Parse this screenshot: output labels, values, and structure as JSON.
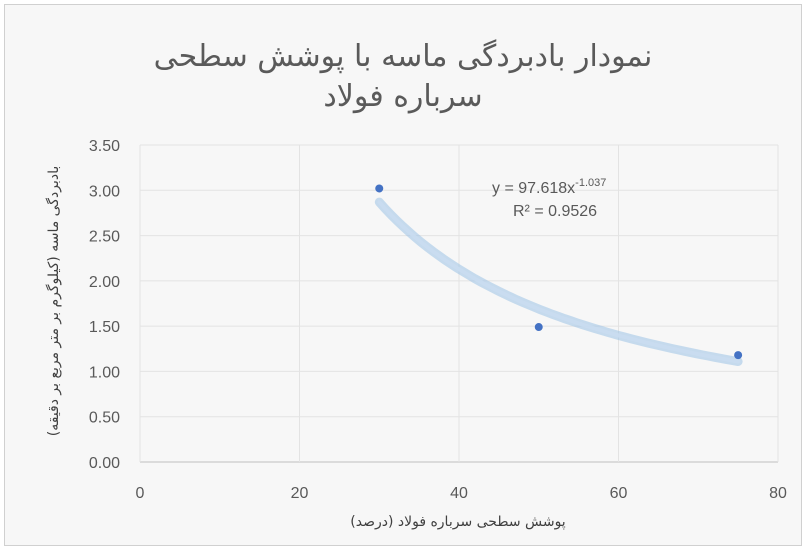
{
  "chart_data": {
    "type": "scatter",
    "title_lines": [
      "نمودار بادبردگی ماسه با پوشش سطحی",
      "سرباره فولاد"
    ],
    "xlabel": "پوشش سطحی سرباره فولاد (درصد)",
    "ylabel": "بادبردگی ماسه (کیلوگرم بر متر مربع بر دقیقه)",
    "xlim": [
      0,
      80
    ],
    "ylim": [
      0,
      3.5
    ],
    "x_ticks": [
      "0",
      "20",
      "40",
      "60",
      "80"
    ],
    "y_ticks": [
      "0.00",
      "0.50",
      "1.00",
      "1.50",
      "2.00",
      "2.50",
      "3.00",
      "3.50"
    ],
    "grid": true,
    "series": [
      {
        "x": [
          30,
          50,
          75
        ],
        "y": [
          3.02,
          1.49,
          1.18
        ],
        "color": "#4472c4"
      }
    ],
    "trendline": {
      "type": "power",
      "a": 97.618,
      "b": -1.037,
      "x_range": [
        30,
        75
      ],
      "color": "#9dc3e6"
    },
    "annotations": {
      "equation_base": "y = 97.618x",
      "equation_exp": "-1.037",
      "r_squared": "R² = 0.9526"
    }
  }
}
